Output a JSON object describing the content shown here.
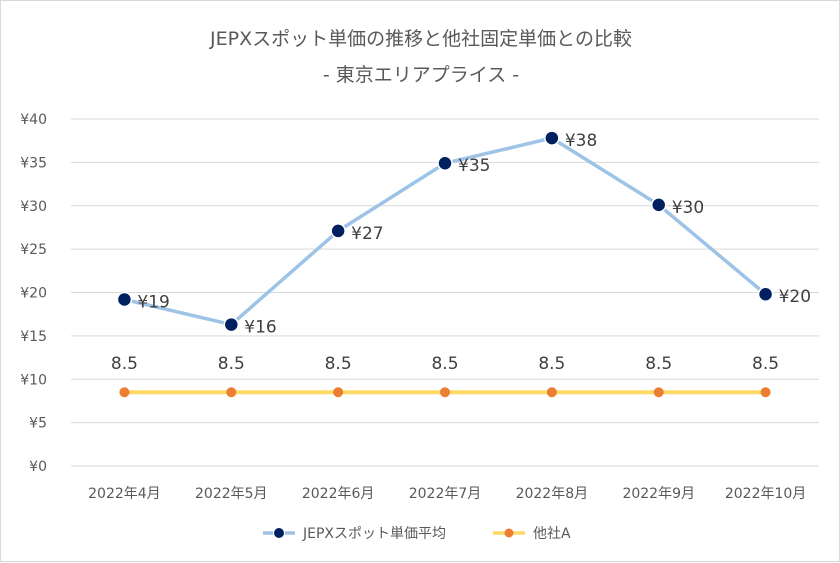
{
  "chart_data": {
    "type": "line",
    "title": "JEPXスポット単価の推移と他社固定単価との比較",
    "subtitle": "- 東京エリアプライス -",
    "categories": [
      "2022年4月",
      "2022年5月",
      "2022年6月",
      "2022年7月",
      "2022年8月",
      "2022年9月",
      "2022年10月"
    ],
    "ylim": [
      0,
      40
    ],
    "ytick_values": [
      0,
      5,
      10,
      15,
      20,
      25,
      30,
      35,
      40
    ],
    "ytick_labels": [
      "¥0",
      "¥5",
      "¥10",
      "¥15",
      "¥20",
      "¥25",
      "¥30",
      "¥35",
      "¥40"
    ],
    "grid": true,
    "legend_position": "bottom",
    "series": [
      {
        "name": "JEPXスポット単価平均",
        "values": [
          19.2,
          16.3,
          27.1,
          34.9,
          37.8,
          30.1,
          19.8
        ],
        "labels": [
          "¥19",
          "¥16",
          "¥27",
          "¥35",
          "¥38",
          "¥30",
          "¥20"
        ],
        "line_color": "#9dc3e6",
        "marker_color": "#002060"
      },
      {
        "name": "他社A",
        "values": [
          8.5,
          8.5,
          8.5,
          8.5,
          8.5,
          8.5,
          8.5
        ],
        "labels": [
          "8.5",
          "8.5",
          "8.5",
          "8.5",
          "8.5",
          "8.5",
          "8.5"
        ],
        "line_color": "#ffd966",
        "marker_color": "#ed7d31"
      }
    ]
  }
}
